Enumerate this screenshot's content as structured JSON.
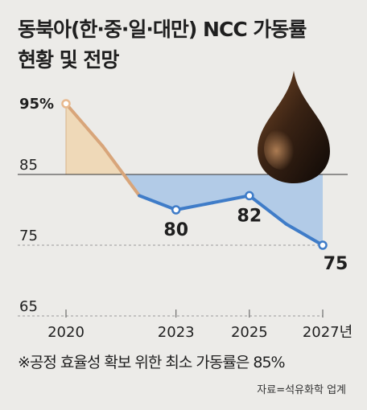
{
  "chart_data": {
    "type": "line",
    "title_line1": "동북아(한·중·일·대만) NCC 가동률",
    "title_line2": "현황 및 전망",
    "x": [
      2020,
      2021,
      2022,
      2023,
      2024,
      2025,
      2026,
      2027
    ],
    "values": [
      95,
      89,
      82,
      80,
      81,
      82,
      78,
      75
    ],
    "x_tick_labels": [
      "2020",
      "2023",
      "2025",
      "2027년"
    ],
    "x_tick_values": [
      2020,
      2023,
      2025,
      2027
    ],
    "y_tick_labels": [
      "95%",
      "85",
      "75",
      "65"
    ],
    "y_tick_values": [
      95,
      85,
      75,
      65
    ],
    "data_labels": [
      {
        "x": 2023,
        "text": "80"
      },
      {
        "x": 2025,
        "text": "82"
      },
      {
        "x": 2027,
        "text": "75"
      }
    ],
    "reference_line": 85,
    "ylim": [
      65,
      97
    ],
    "xlim": [
      2020,
      2027
    ],
    "colors": {
      "line": "#3f7cc8",
      "fill_above": "#efd9b8",
      "fill_below": "#a8c6e6",
      "reference": "#333333",
      "marker_top": "#e8b98f"
    },
    "note": "※공정 효율성 확보 위한 최소 가동률은 85%",
    "source": "자료=석유화학 업계"
  }
}
